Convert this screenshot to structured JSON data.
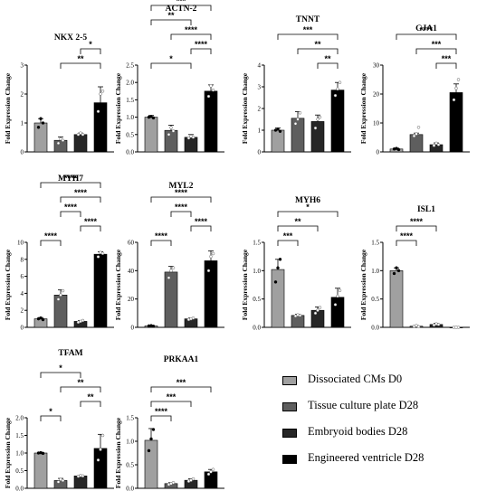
{
  "chart_data": [
    {
      "type": "bar",
      "title": "NKX 2-5",
      "ylabel": "Fold  Expression Change",
      "ylim": [
        0,
        3
      ],
      "yticks": [
        "0",
        "1",
        "2",
        "3"
      ],
      "values": [
        1.0,
        0.4,
        0.6,
        1.7
      ],
      "errors": [
        0.15,
        0.12,
        0.05,
        0.55
      ],
      "points": [
        [
          0.85,
          1.15,
          1.0
        ],
        [
          0.3,
          0.45,
          0.4
        ],
        [
          0.6,
          0.65,
          0.6
        ],
        [
          1.4,
          2.0,
          2.1
        ]
      ],
      "comparisons": [
        {
          "from": 1,
          "to": 3,
          "label": "**"
        },
        {
          "from": 2,
          "to": 3,
          "label": "*"
        }
      ]
    },
    {
      "type": "bar",
      "title": "ACTN-2",
      "ylabel": "Fold  Expression Change",
      "ylim": [
        0,
        2.5
      ],
      "yticks": [
        "0.0",
        "0.5",
        "1.0",
        "1.5",
        "2.0",
        "2.5"
      ],
      "values": [
        1.0,
        0.62,
        0.42,
        1.75
      ],
      "errors": [
        0.05,
        0.15,
        0.08,
        0.18
      ],
      "points": [
        [
          1.0,
          1.02,
          0.98
        ],
        [
          0.5,
          0.7,
          0.6
        ],
        [
          0.4,
          0.45,
          0.42
        ],
        [
          1.6,
          1.9,
          1.78
        ]
      ],
      "comparisons": [
        {
          "from": 0,
          "to": 2,
          "label": "*"
        },
        {
          "from": 2,
          "to": 3,
          "label": "****"
        },
        {
          "from": 1,
          "to": 3,
          "label": "****"
        },
        {
          "from": 0,
          "to": 2,
          "label": "**"
        },
        {
          "from": 0,
          "to": 3,
          "label": "***"
        }
      ]
    },
    {
      "type": "bar",
      "title": "TNNT",
      "ylabel": "Fold  Expression Change",
      "ylim": [
        0,
        4
      ],
      "yticks": [
        "0",
        "1",
        "2",
        "3",
        "4"
      ],
      "values": [
        1.0,
        1.55,
        1.4,
        2.85
      ],
      "errors": [
        0.1,
        0.3,
        0.3,
        0.35
      ],
      "points": [
        [
          1.0,
          1.05,
          0.95
        ],
        [
          1.3,
          1.5,
          1.8
        ],
        [
          1.1,
          1.5,
          1.6
        ],
        [
          2.6,
          2.9,
          3.2
        ]
      ],
      "comparisons": [
        {
          "from": 2,
          "to": 3,
          "label": "**"
        },
        {
          "from": 1,
          "to": 3,
          "label": "**"
        },
        {
          "from": 0,
          "to": 3,
          "label": "***"
        }
      ]
    },
    {
      "type": "bar",
      "title": "GJA1",
      "ylabel": "Fold  Expression Change",
      "ylim": [
        0,
        30
      ],
      "yticks": [
        "0",
        "10",
        "20",
        "30"
      ],
      "values": [
        1.0,
        6.0,
        2.5,
        20.5
      ],
      "errors": [
        0.3,
        0.5,
        0.6,
        3.0
      ],
      "points": [
        [
          1.0,
          1.2,
          0.8
        ],
        [
          5.5,
          6.2,
          8.5
        ],
        [
          2.2,
          3.0,
          2.5
        ],
        [
          18.0,
          22.0,
          25.0
        ]
      ],
      "comparisons": [
        {
          "from": 2,
          "to": 3,
          "label": "***"
        },
        {
          "from": 1,
          "to": 3,
          "label": "***"
        },
        {
          "from": 0,
          "to": 3,
          "label": "****"
        }
      ]
    },
    {
      "type": "bar",
      "title": "MYH7",
      "ylabel": "Fold  Expression Change",
      "ylim": [
        0,
        10
      ],
      "yticks": [
        "0",
        "2",
        "4",
        "6",
        "8",
        "10"
      ],
      "values": [
        1.0,
        3.8,
        0.7,
        8.6
      ],
      "errors": [
        0.15,
        0.6,
        0.1,
        0.3
      ],
      "points": [
        [
          1.0,
          1.1,
          0.9
        ],
        [
          3.3,
          3.8,
          4.3
        ],
        [
          0.6,
          0.7,
          0.8
        ],
        [
          8.3,
          8.8,
          8.7
        ]
      ],
      "comparisons": [
        {
          "from": 0,
          "to": 1,
          "label": "****"
        },
        {
          "from": 2,
          "to": 3,
          "label": "****"
        },
        {
          "from": 1,
          "to": 2,
          "label": "****"
        },
        {
          "from": 1,
          "to": 3,
          "label": "****"
        },
        {
          "from": 0,
          "to": 3,
          "label": "****"
        }
      ]
    },
    {
      "type": "bar",
      "title": "MYL2",
      "ylabel": "Fold  Expression Change",
      "ylim": [
        0,
        60
      ],
      "yticks": [
        "0",
        "20",
        "40",
        "60"
      ],
      "values": [
        1.0,
        39.0,
        6.0,
        47.0
      ],
      "errors": [
        0.3,
        4.0,
        0.6,
        7.0
      ],
      "points": [
        [
          1.0,
          1.2,
          0.8
        ],
        [
          35.0,
          40.0,
          42.0
        ],
        [
          5.5,
          6.0,
          6.5
        ],
        [
          40.0,
          50.0,
          52.0
        ]
      ],
      "comparisons": [
        {
          "from": 0,
          "to": 1,
          "label": "****"
        },
        {
          "from": 2,
          "to": 3,
          "label": "****"
        },
        {
          "from": 1,
          "to": 2,
          "label": "****"
        },
        {
          "from": 0,
          "to": 3,
          "label": "****"
        }
      ]
    },
    {
      "type": "bar",
      "title": "MYH6",
      "ylabel": "Fold  Expression Change",
      "ylim": [
        0,
        1.5
      ],
      "yticks": [
        "0.0",
        "0.5",
        "1.0",
        "1.5"
      ],
      "values": [
        1.02,
        0.21,
        0.3,
        0.53
      ],
      "errors": [
        0.18,
        0.02,
        0.06,
        0.16
      ],
      "points": [
        [
          0.8,
          1.05,
          1.2
        ],
        [
          0.2,
          0.22,
          0.21
        ],
        [
          0.25,
          0.3,
          0.35
        ],
        [
          0.4,
          0.55,
          0.65
        ]
      ],
      "comparisons": [
        {
          "from": 0,
          "to": 1,
          "label": "***"
        },
        {
          "from": 0,
          "to": 2,
          "label": "**"
        },
        {
          "from": 0,
          "to": 3,
          "label": "*"
        }
      ]
    },
    {
      "type": "bar",
      "title": "ISL1",
      "ylabel": "Fold  Expression Change",
      "ylim": [
        0,
        1.5
      ],
      "yticks": [
        "0.0",
        "0.5",
        "1.0",
        "1.5"
      ],
      "values": [
        1.0,
        0.02,
        0.05,
        0.0
      ],
      "errors": [
        0.05,
        0.01,
        0.02,
        0.0
      ],
      "points": [
        [
          0.95,
          1.05,
          1.0
        ],
        [
          0.02,
          0.03,
          0.01
        ],
        [
          0.04,
          0.06,
          0.05
        ],
        [
          0.0,
          0.0,
          0.0
        ]
      ],
      "comparisons": [
        {
          "from": 0,
          "to": 1,
          "label": "****"
        },
        {
          "from": 0,
          "to": 2,
          "label": "****"
        }
      ]
    },
    {
      "type": "bar",
      "title": "TFAM",
      "ylabel": "Fold  Expression Change",
      "ylim": [
        0,
        2.0
      ],
      "yticks": [
        "0.0",
        "0.5",
        "1.0",
        "1.5",
        "2.0"
      ],
      "values": [
        1.0,
        0.22,
        0.35,
        1.13
      ],
      "errors": [
        0.02,
        0.06,
        0.02,
        0.4
      ],
      "points": [
        [
          1.0,
          1.01,
          0.99
        ],
        [
          0.18,
          0.25,
          0.22
        ],
        [
          0.34,
          0.36,
          0.35
        ],
        [
          0.8,
          1.1,
          1.5
        ]
      ],
      "comparisons": [
        {
          "from": 0,
          "to": 1,
          "label": "*"
        },
        {
          "from": 2,
          "to": 3,
          "label": "**"
        },
        {
          "from": 1,
          "to": 3,
          "label": "**"
        },
        {
          "from": 0,
          "to": 2,
          "label": "*"
        }
      ]
    },
    {
      "type": "bar",
      "title": "PRKAA1",
      "ylabel": "Fold  Expression Change",
      "ylim": [
        0,
        1.5
      ],
      "yticks": [
        "0.0",
        "0.5",
        "1.0",
        "1.5"
      ],
      "values": [
        1.02,
        0.1,
        0.17,
        0.35
      ],
      "errors": [
        0.25,
        0.02,
        0.03,
        0.05
      ],
      "points": [
        [
          0.8,
          1.05,
          1.25
        ],
        [
          0.08,
          0.1,
          0.12
        ],
        [
          0.15,
          0.17,
          0.2
        ],
        [
          0.3,
          0.35,
          0.4
        ]
      ],
      "comparisons": [
        {
          "from": 0,
          "to": 1,
          "label": "****"
        },
        {
          "from": 0,
          "to": 2,
          "label": "***"
        },
        {
          "from": 0,
          "to": 3,
          "label": "***"
        }
      ]
    }
  ],
  "legend": {
    "placement": "bottom-right",
    "items": [
      {
        "label": "Dissociated CMs D0",
        "color": "#a0a0a0"
      },
      {
        "label": "Tissue culture plate D28",
        "color": "#5e5e5e"
      },
      {
        "label": "Embryoid bodies D28",
        "color": "#262626"
      },
      {
        "label": "Engineered ventricle D28",
        "color": "#000000"
      }
    ]
  }
}
